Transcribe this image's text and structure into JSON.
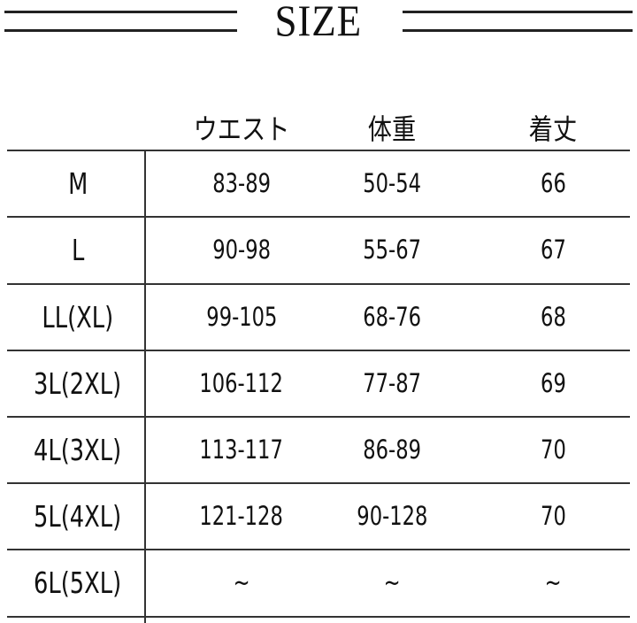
{
  "title": "SIZE",
  "table": {
    "headers": [
      "",
      "ウエスト",
      "体重",
      "着丈"
    ],
    "rows": [
      {
        "size": "M",
        "waist": "83-89",
        "weight": "50-54",
        "length": "66"
      },
      {
        "size": "L",
        "waist": "90-98",
        "weight": "55-67",
        "length": "67"
      },
      {
        "size": "LL(XL)",
        "waist": "99-105",
        "weight": "68-76",
        "length": "68"
      },
      {
        "size": "3L(2XL)",
        "waist": "106-112",
        "weight": "77-87",
        "length": "69"
      },
      {
        "size": "4L(3XL)",
        "waist": "113-117",
        "weight": "86-89",
        "length": "70"
      },
      {
        "size": "5L(4XL)",
        "waist": "121-128",
        "weight": "90-128",
        "length": "70"
      },
      {
        "size": "6L(5XL)",
        "waist": "~",
        "weight": "~",
        "length": "~"
      }
    ]
  }
}
